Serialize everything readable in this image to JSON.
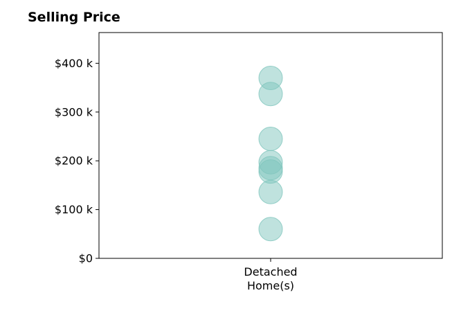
{
  "chart_data": {
    "type": "scatter",
    "title": "Selling Price",
    "xlabel": "",
    "ylabel": "",
    "categories": [
      [
        "Detached",
        "Home(s)"
      ]
    ],
    "series": [
      {
        "category_index": 0,
        "values": [
          370000,
          337000,
          245000,
          197000,
          185000,
          178000,
          136000,
          60000
        ]
      }
    ],
    "ylim": [
      0,
      463000
    ],
    "yticks": [
      0,
      100000,
      200000,
      300000,
      400000
    ],
    "ytick_labels": [
      "$0",
      "$100 k",
      "$200 k",
      "$300 k",
      "$400 k"
    ],
    "grid": false,
    "marker_color": "#7fc6bd",
    "marker_opacity": 0.5
  }
}
